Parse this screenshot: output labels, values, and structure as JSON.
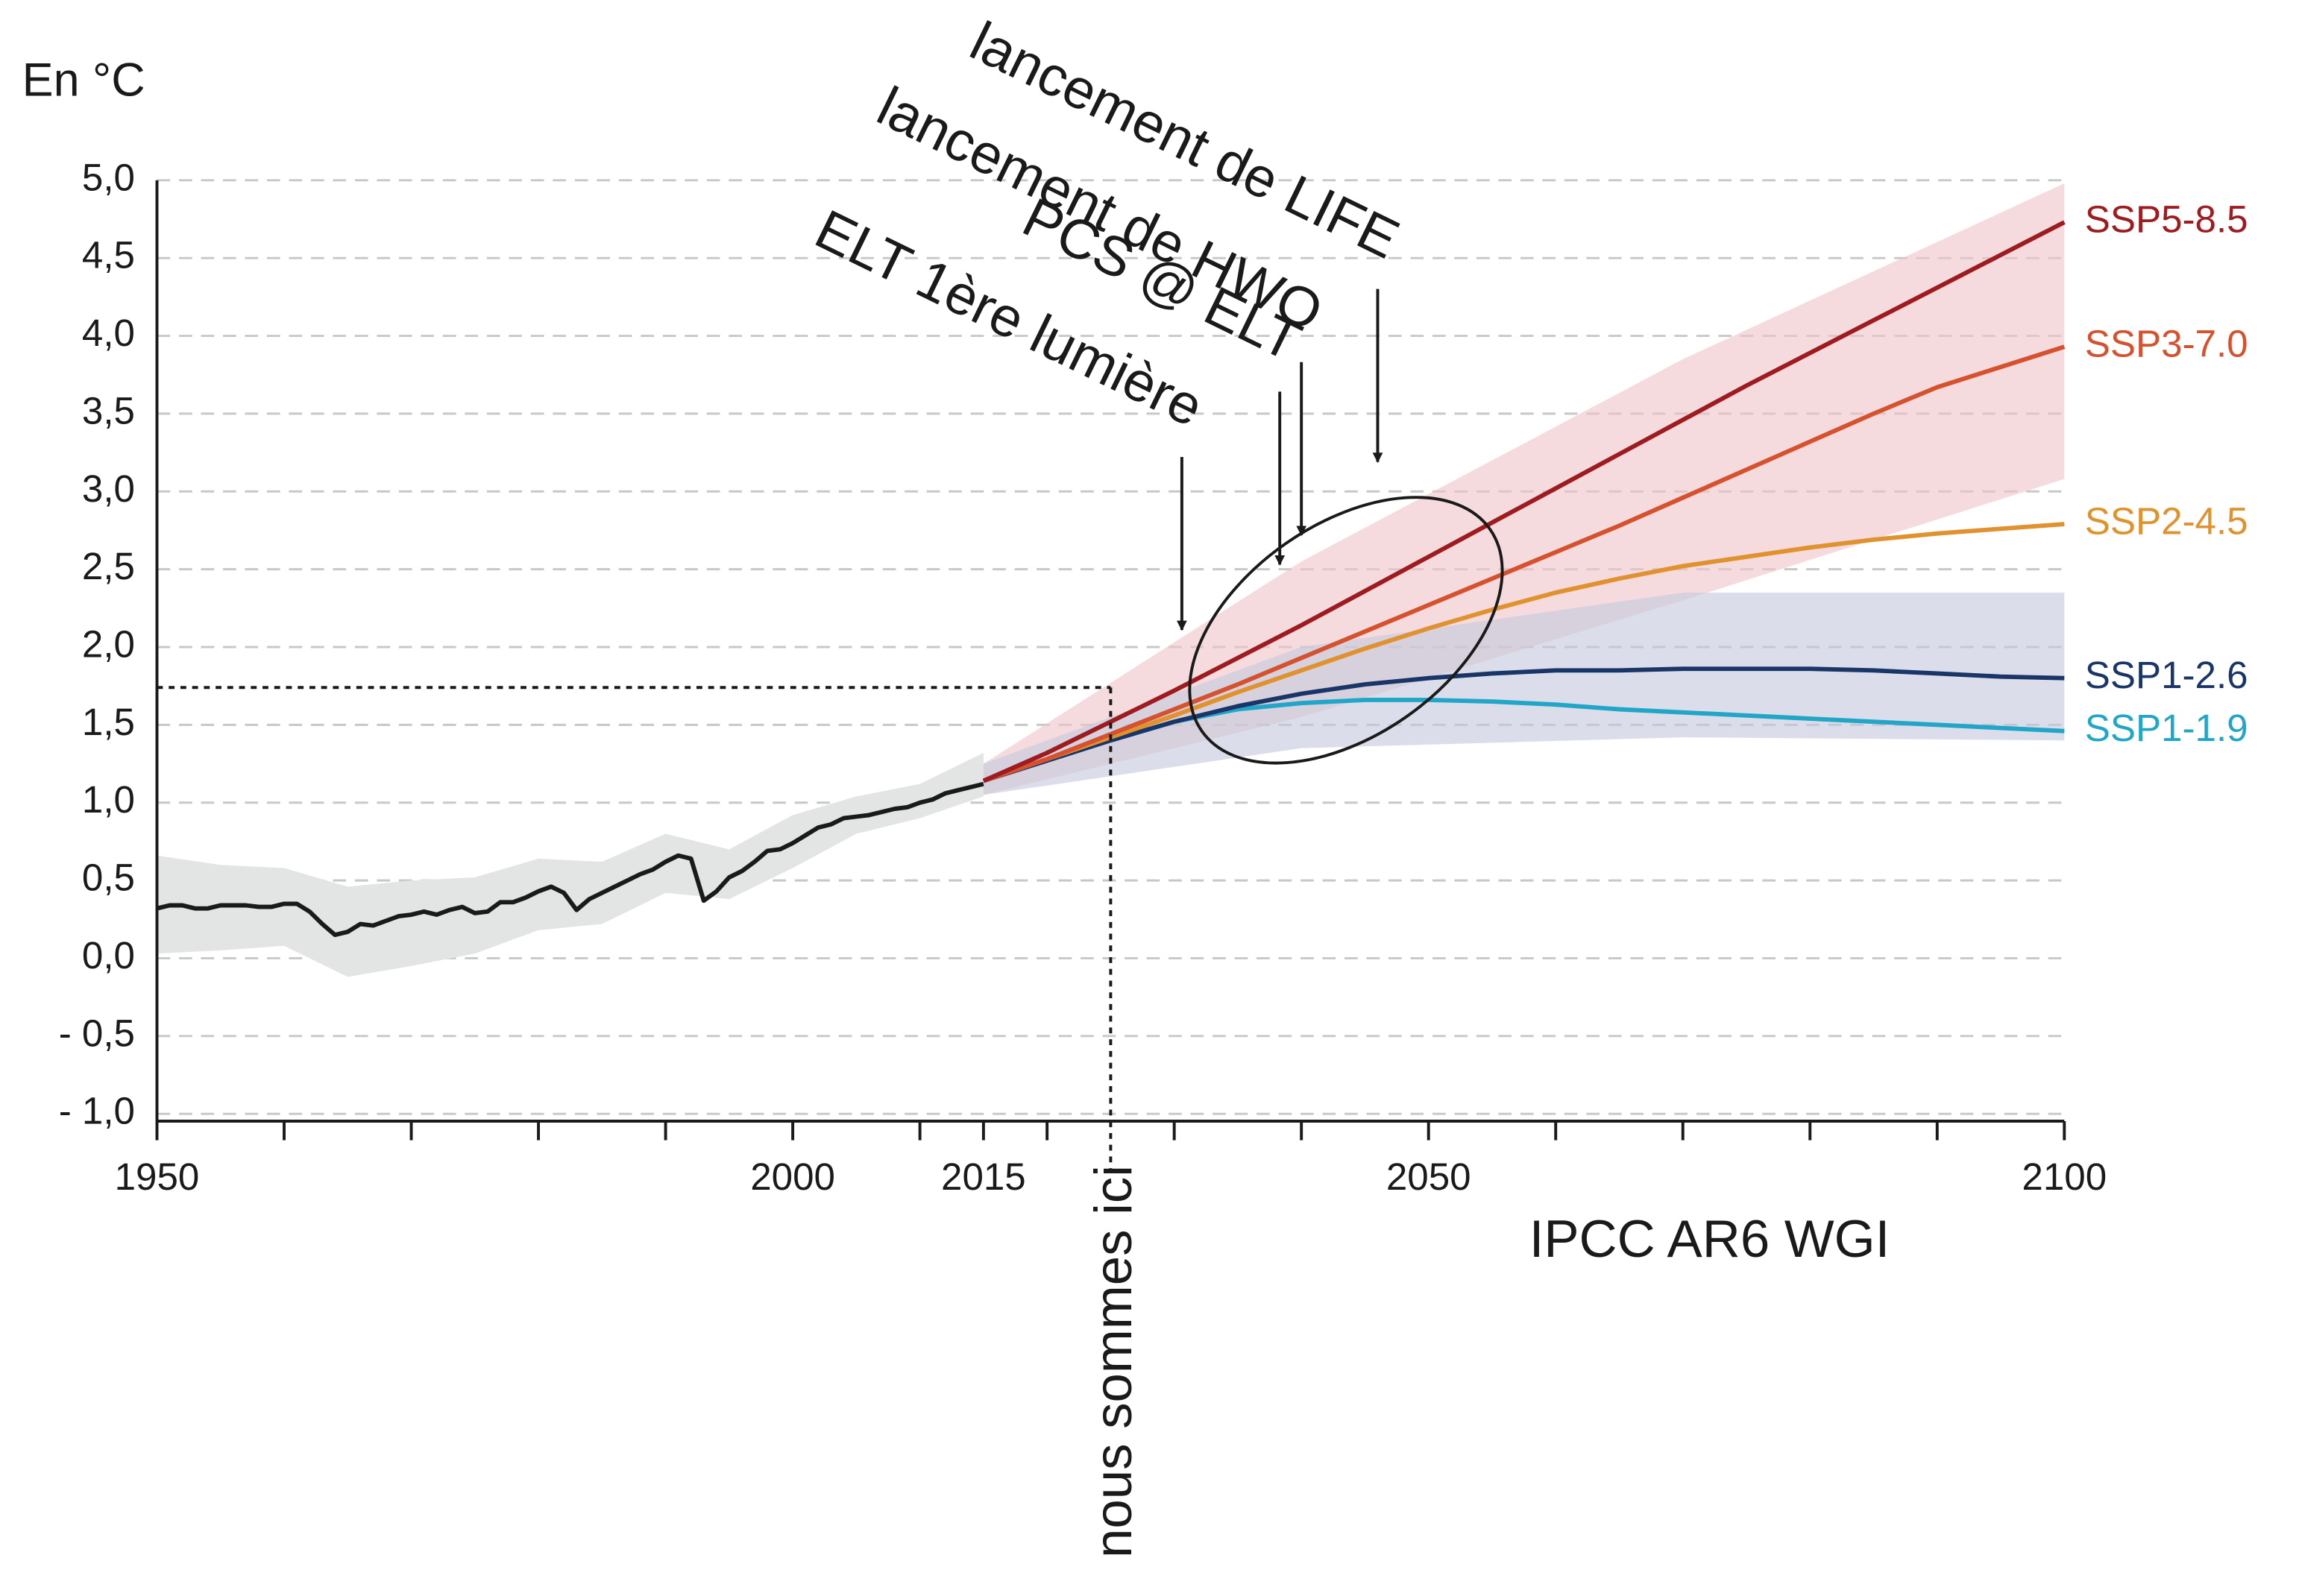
{
  "chart_data": {
    "type": "line",
    "y_label": "En °C",
    "source": "IPCC AR6 WGI",
    "xlim": [
      1950,
      2100
    ],
    "ylim": [
      -1,
      5
    ],
    "xticks": [
      1950,
      2000,
      2015,
      2050,
      2100
    ],
    "x_minor_ticks": [
      1960,
      1970,
      1980,
      1990,
      2010,
      2020,
      2030,
      2040,
      2060,
      2070,
      2080,
      2090
    ],
    "yticks": [
      {
        "value": 5,
        "label": "5,0"
      },
      {
        "value": 4.5,
        "label": "4,5"
      },
      {
        "value": 4,
        "label": "4,0"
      },
      {
        "value": 3.5,
        "label": "3,5"
      },
      {
        "value": 3,
        "label": "3,0"
      },
      {
        "value": 2.5,
        "label": "2,5"
      },
      {
        "value": 2,
        "label": "2,0"
      },
      {
        "value": 1.5,
        "label": "1,5"
      },
      {
        "value": 1,
        "label": "1,0"
      },
      {
        "value": 0.5,
        "label": "0,5"
      },
      {
        "value": 0,
        "label": "0,0"
      },
      {
        "value": -0.5,
        "label": "- 0,5"
      },
      {
        "value": -1,
        "label": "- 1,0"
      }
    ],
    "grid": true,
    "historical": {
      "color": "#1a1a1a",
      "x": [
        1950,
        1951,
        1952,
        1953,
        1954,
        1955,
        1956,
        1957,
        1958,
        1959,
        1960,
        1961,
        1962,
        1963,
        1964,
        1965,
        1966,
        1967,
        1968,
        1969,
        1970,
        1971,
        1972,
        1973,
        1974,
        1975,
        1976,
        1977,
        1978,
        1979,
        1980,
        1981,
        1982,
        1983,
        1984,
        1985,
        1986,
        1987,
        1988,
        1989,
        1990,
        1991,
        1992,
        1993,
        1994,
        1995,
        1996,
        1997,
        1998,
        1999,
        2000,
        2001,
        2002,
        2003,
        2004,
        2005,
        2006,
        2007,
        2008,
        2009,
        2010,
        2011,
        2012,
        2013,
        2014,
        2015
      ],
      "values": [
        0.32,
        0.34,
        0.34,
        0.32,
        0.32,
        0.34,
        0.34,
        0.34,
        0.33,
        0.33,
        0.35,
        0.35,
        0.3,
        0.22,
        0.15,
        0.17,
        0.22,
        0.21,
        0.24,
        0.27,
        0.28,
        0.3,
        0.28,
        0.31,
        0.33,
        0.29,
        0.3,
        0.36,
        0.36,
        0.39,
        0.43,
        0.46,
        0.42,
        0.31,
        0.38,
        0.42,
        0.46,
        0.5,
        0.54,
        0.57,
        0.62,
        0.66,
        0.64,
        0.37,
        0.43,
        0.52,
        0.56,
        0.62,
        0.69,
        0.7,
        0.74,
        0.79,
        0.84,
        0.86,
        0.9,
        0.91,
        0.92,
        0.94,
        0.96,
        0.97,
        1.0,
        1.02,
        1.06,
        1.08,
        1.1,
        1.12
      ],
      "band_color": "#e3e5e5",
      "band_x": [
        1950,
        1955,
        1960,
        1965,
        1970,
        1975,
        1980,
        1985,
        1990,
        1995,
        2000,
        2005,
        2010,
        2015
      ],
      "band_low": [
        0.03,
        0.05,
        0.08,
        -0.12,
        -0.05,
        0.03,
        0.18,
        0.22,
        0.42,
        0.38,
        0.58,
        0.8,
        0.9,
        1.04
      ],
      "band_high": [
        0.66,
        0.6,
        0.58,
        0.46,
        0.5,
        0.52,
        0.64,
        0.62,
        0.8,
        0.7,
        0.92,
        1.04,
        1.12,
        1.32
      ]
    },
    "bands": [
      {
        "color": "#eec3c8",
        "x": [
          2015,
          2040,
          2070,
          2100
        ],
        "low": [
          1.05,
          1.55,
          2.3,
          3.08
        ],
        "high": [
          1.25,
          2.55,
          3.85,
          4.98
        ]
      },
      {
        "color": "#c3c8dc",
        "x": [
          2015,
          2040,
          2070,
          2100
        ],
        "low": [
          1.05,
          1.35,
          1.42,
          1.4
        ],
        "high": [
          1.25,
          2.0,
          2.35,
          2.35
        ]
      }
    ],
    "x": [
      2015,
      2020,
      2025,
      2030,
      2035,
      2040,
      2045,
      2050,
      2055,
      2060,
      2065,
      2070,
      2075,
      2080,
      2085,
      2090,
      2095,
      2100
    ],
    "series": [
      {
        "name": "SSP5-8.5",
        "color": "#9e1b20",
        "values": [
          1.14,
          1.32,
          1.52,
          1.72,
          1.93,
          2.14,
          2.36,
          2.58,
          2.8,
          3.02,
          3.24,
          3.46,
          3.68,
          3.89,
          4.1,
          4.31,
          4.52,
          4.73
        ]
      },
      {
        "name": "SSP3-7.0",
        "color": "#d6512d",
        "values": [
          1.14,
          1.28,
          1.44,
          1.6,
          1.76,
          1.93,
          2.1,
          2.27,
          2.44,
          2.61,
          2.78,
          2.96,
          3.14,
          3.32,
          3.5,
          3.67,
          3.8,
          3.93
        ]
      },
      {
        "name": "SSP2-4.5",
        "color": "#e0922f",
        "values": [
          1.14,
          1.28,
          1.42,
          1.56,
          1.71,
          1.85,
          1.99,
          2.12,
          2.24,
          2.35,
          2.44,
          2.52,
          2.58,
          2.64,
          2.69,
          2.73,
          2.76,
          2.79
        ]
      },
      {
        "name": "SSP1-2.6",
        "color": "#1a3668",
        "values": [
          1.14,
          1.27,
          1.4,
          1.52,
          1.62,
          1.7,
          1.76,
          1.8,
          1.83,
          1.85,
          1.85,
          1.86,
          1.86,
          1.86,
          1.85,
          1.83,
          1.81,
          1.8
        ]
      },
      {
        "name": "SSP1-1.9",
        "color": "#22a6c8",
        "values": [
          1.14,
          1.27,
          1.4,
          1.52,
          1.6,
          1.64,
          1.66,
          1.66,
          1.65,
          1.63,
          1.6,
          1.58,
          1.56,
          1.54,
          1.52,
          1.5,
          1.48,
          1.46
        ]
      }
    ],
    "annotations": [
      {
        "text": "lancement de LIFE",
        "x": 2046,
        "y": 3.19
      },
      {
        "text": "lancement de HWO",
        "x": 2040,
        "y": 2.72
      },
      {
        "text": "PCS @ ELT",
        "x": 2038.3,
        "y": 2.53
      },
      {
        "text": "ELT 1ère lumière",
        "x": 2030.6,
        "y": 2.11
      }
    ],
    "marker": {
      "label": "nous sommes ici",
      "x": 2025,
      "y": 1.74
    }
  }
}
